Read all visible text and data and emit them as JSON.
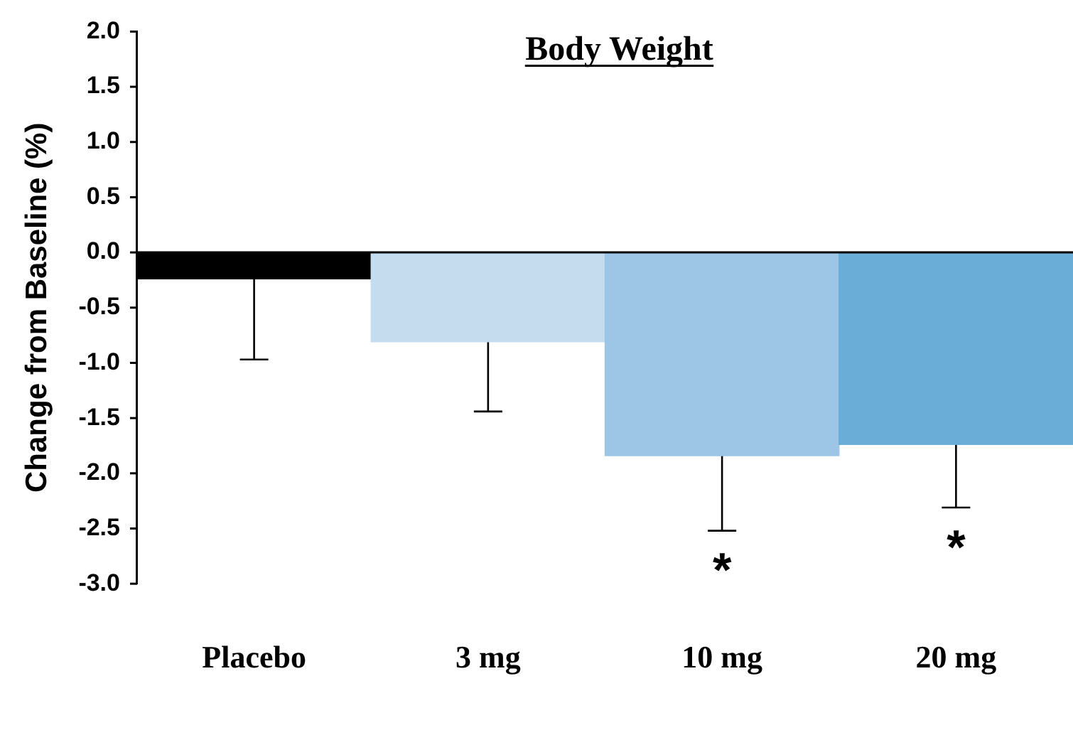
{
  "chart_data": {
    "type": "bar",
    "title": "Body Weight",
    "ylabel": "Change from Baseline (%)",
    "categories": [
      "Placebo",
      "3 mg",
      "10 mg",
      "20 mg"
    ],
    "values": [
      -0.24,
      -0.81,
      -1.84,
      -1.74
    ],
    "colors": [
      "#000000",
      "#c5dcee",
      "#9dc6e6",
      "#6aaed8"
    ],
    "errors": [
      [
        -0.97,
        -0.24
      ],
      [
        -1.44,
        -0.81
      ],
      [
        -2.52,
        -1.84
      ],
      [
        -2.31,
        -1.74
      ]
    ],
    "value_labels": [
      null,
      null,
      "*",
      "*"
    ],
    "ylim": [
      -3,
      2
    ],
    "yticks": [
      {
        "value": -3,
        "label": "-3.0"
      },
      {
        "value": -2.5,
        "label": "-2.5"
      },
      {
        "value": -2,
        "label": "-2.0"
      },
      {
        "value": -1.5,
        "label": "-1.5"
      },
      {
        "value": -1,
        "label": "-1.0"
      },
      {
        "value": -0.5,
        "label": "-0.5"
      },
      {
        "value": 0,
        "label": "0.0"
      },
      {
        "value": 0.5,
        "label": "0.5"
      },
      {
        "value": 1,
        "label": "1.0"
      },
      {
        "value": 1.5,
        "label": "1.5"
      },
      {
        "value": 2,
        "label": "2.0"
      }
    ],
    "ref_lines": [
      {
        "axis": "y",
        "value": 0,
        "color": "#000000"
      }
    ],
    "grid": false,
    "legend": false
  }
}
